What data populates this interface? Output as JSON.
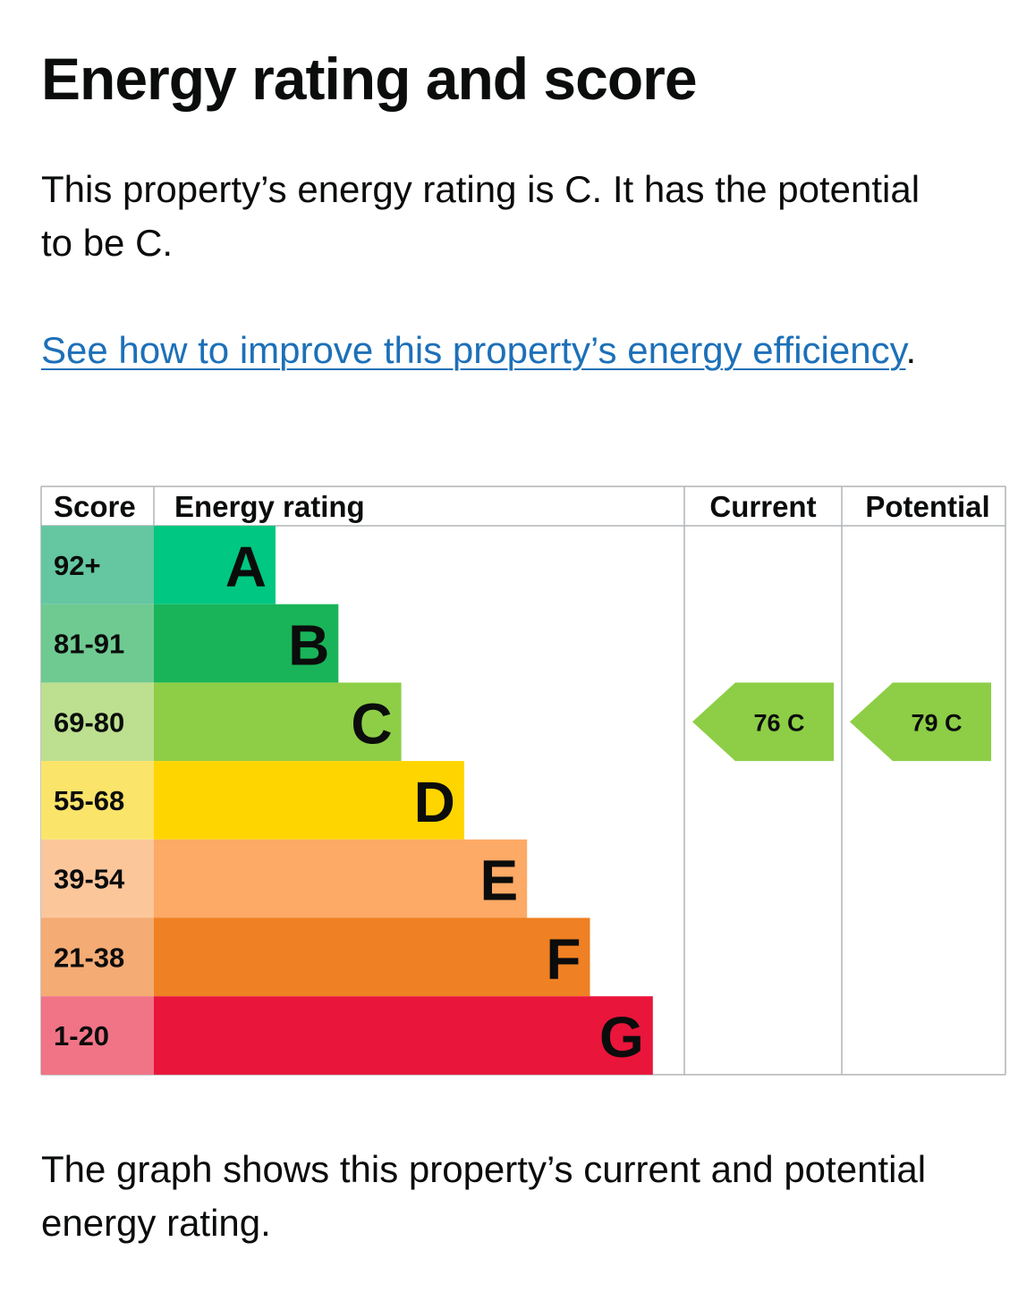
{
  "page": {
    "title": "Energy rating and score",
    "summary": "This property’s energy rating is C. It has the potential to be C.",
    "improve_link": "See how to improve this property’s energy efficiency",
    "improve_suffix": ".",
    "footnote": "The graph shows this property’s current and potential energy rating."
  },
  "chart_data": {
    "type": "bar",
    "headers": {
      "score": "Score",
      "rating": "Energy rating",
      "current": "Current",
      "potential": "Potential"
    },
    "bands": [
      {
        "score": "92+",
        "letter": "A",
        "color": "#00c781",
        "score_bg": "#64c7a2"
      },
      {
        "score": "81-91",
        "letter": "B",
        "color": "#19b459",
        "score_bg": "#6fca91"
      },
      {
        "score": "69-80",
        "letter": "C",
        "color": "#8dce46",
        "score_bg": "#bce08f"
      },
      {
        "score": "55-68",
        "letter": "D",
        "color": "#ffd500",
        "score_bg": "#fbe46a"
      },
      {
        "score": "39-54",
        "letter": "E",
        "color": "#fcaa65",
        "score_bg": "#fcc69b"
      },
      {
        "score": "21-38",
        "letter": "F",
        "color": "#ef8023",
        "score_bg": "#f4ab74"
      },
      {
        "score": "1-20",
        "letter": "G",
        "color": "#e9153b",
        "score_bg": "#f07486"
      }
    ],
    "current": {
      "score": 76,
      "letter": "C",
      "label": "76  C",
      "color": "#8dce46"
    },
    "potential": {
      "score": 79,
      "letter": "C",
      "label": "79  C",
      "color": "#8dce46"
    }
  }
}
